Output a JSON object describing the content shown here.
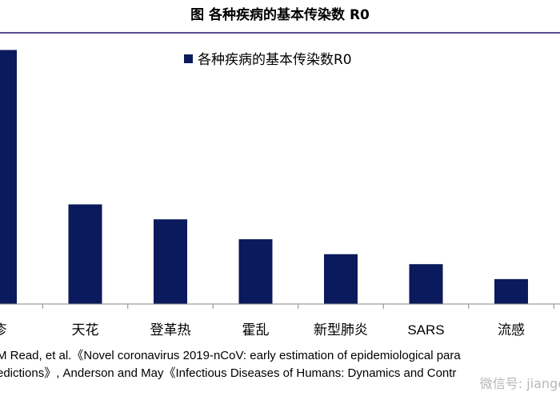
{
  "title": "图  各种疾病的基本传染数 R0",
  "chart_data": {
    "type": "bar",
    "categories": [
      "疹",
      "天花",
      "登革热",
      "霍乱",
      "新型肺炎",
      "SARS",
      "流感"
    ],
    "values": [
      5.1,
      2.0,
      1.7,
      1.3,
      1.0,
      0.8,
      0.5
    ],
    "series": [
      {
        "name": "各种疾病的基本传染数R0",
        "values": [
          5.1,
          2.0,
          1.7,
          1.3,
          1.0,
          0.8,
          0.5
        ]
      }
    ],
    "title": "图  各种疾病的基本传染数 R0",
    "xlabel": "",
    "ylabel": "",
    "ylim": [
      0,
      5.3
    ],
    "grid": false,
    "legend": "top-center",
    "bar_color": "#0b1a5c"
  },
  "source": {
    "line1": "M Read, et al.《Novel coronavirus 2019-nCoV: early estimation of epidemiological para",
    "line2": "edictions》, Anderson and May《Infectious Diseases of Humans: Dynamics and Contr"
  },
  "watermark": "微信号: jiangc"
}
